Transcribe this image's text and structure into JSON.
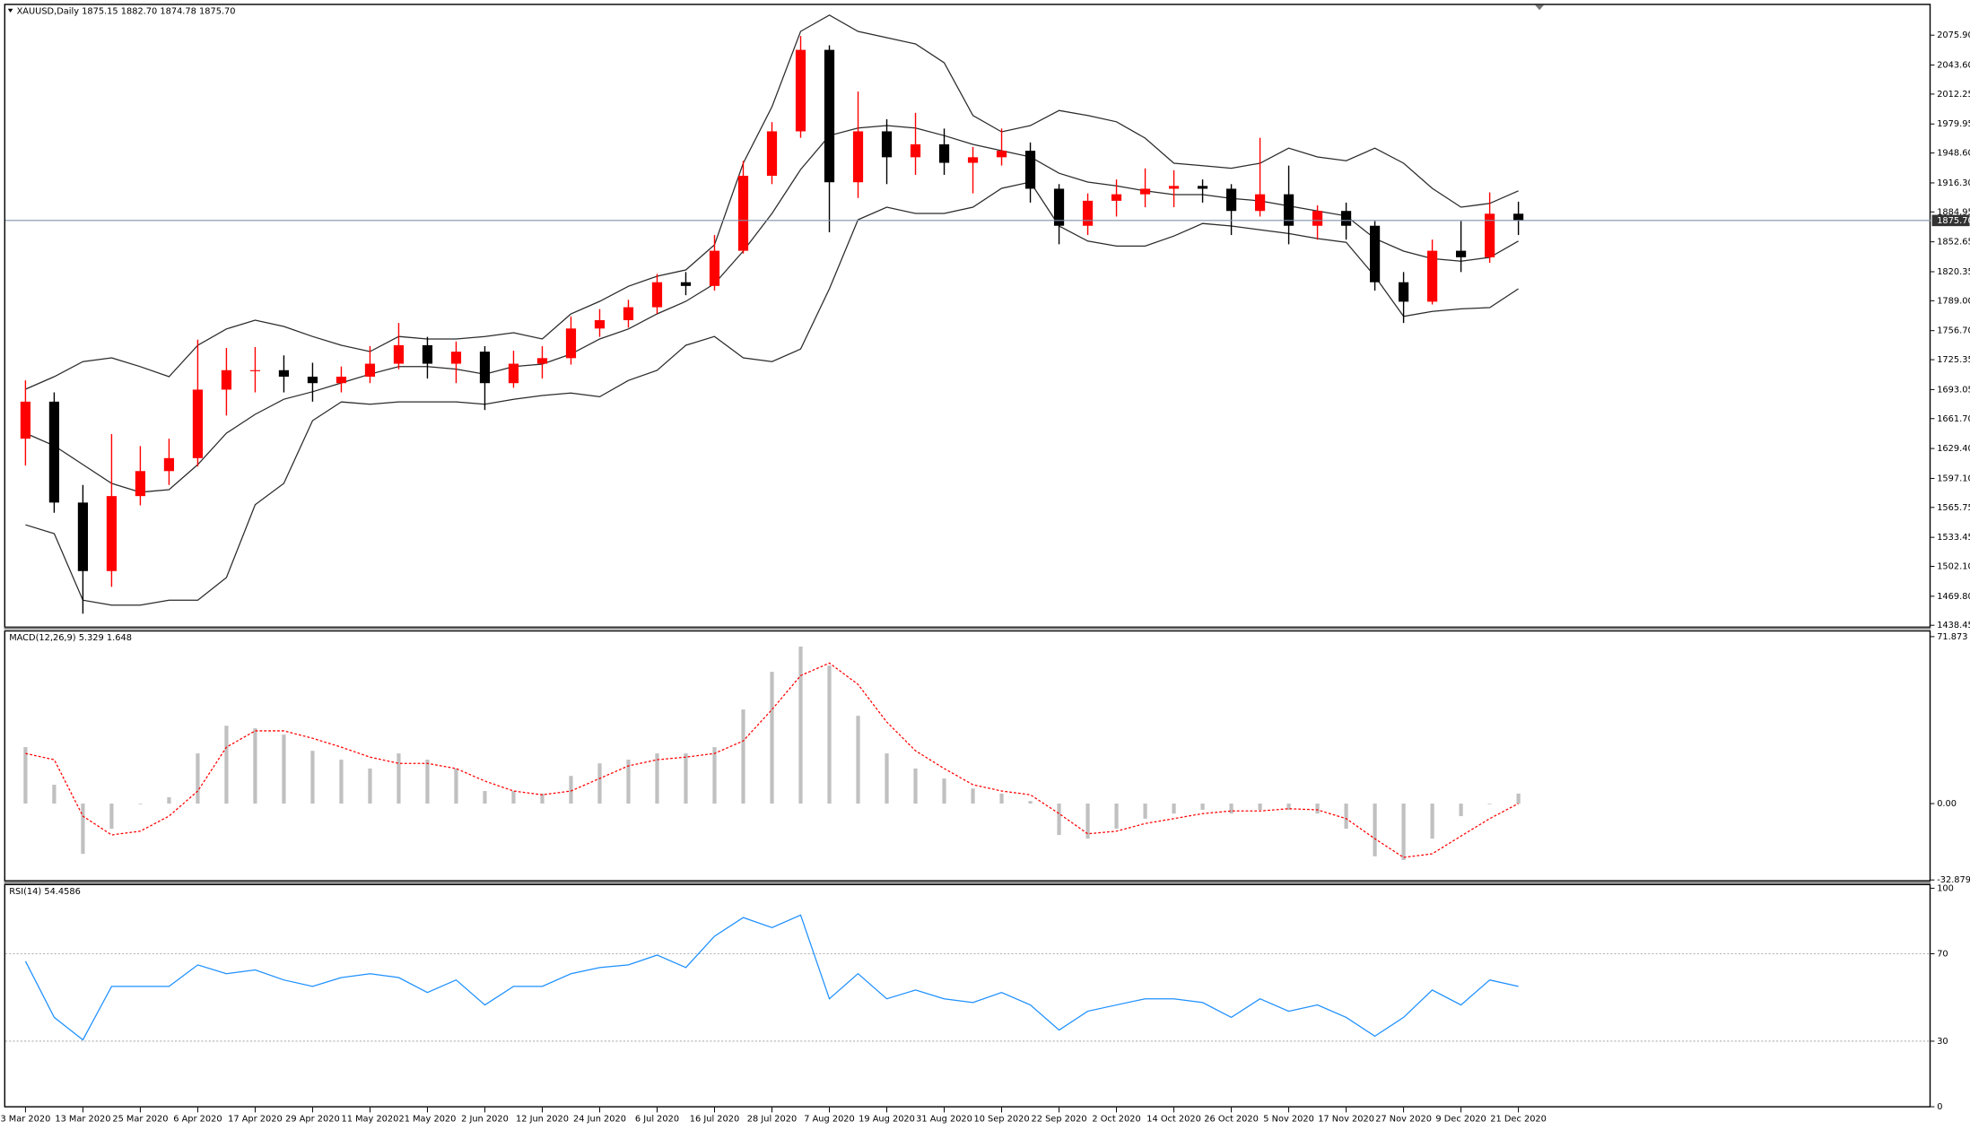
{
  "chart_data": [
    {
      "type": "candlestick",
      "title": "XAUUSD,Daily  1875.15 1882.70 1874.78 1875.70",
      "categories": [
        "3 Mar 2020",
        null,
        "13 Mar 2020",
        null,
        "25 Mar 2020",
        null,
        "6 Apr 2020",
        null,
        "17 Apr 2020",
        null,
        "29 Apr 2020",
        null,
        "11 May 2020",
        null,
        "21 May 2020",
        null,
        "2 Jun 2020",
        null,
        "12 Jun 2020",
        null,
        "24 Jun 2020",
        null,
        "6 Jul 2020",
        null,
        "16 Jul 2020",
        null,
        "28 Jul 2020",
        null,
        "7 Aug 2020",
        null,
        "19 Aug 2020",
        null,
        "31 Aug 2020",
        null,
        "10 Sep 2020",
        null,
        "22 Sep 2020",
        null,
        "2 Oct 2020",
        null,
        "14 Oct 2020",
        null,
        "26 Oct 2020",
        null,
        "5 Nov 2020",
        null,
        "17 Nov 2020",
        null,
        "27 Nov 2020",
        null,
        "9 Dec 2020",
        null,
        "21 Dec 2020"
      ],
      "open": [
        1640,
        1680,
        1571,
        1497,
        1578,
        1605,
        1619,
        1693,
        1714,
        1714,
        1707,
        1700,
        1707,
        1721,
        1741,
        1721,
        1734,
        1700,
        1721,
        1727,
        1759,
        1768,
        1782,
        1809,
        1805,
        1843,
        1924,
        1972,
        2060,
        1917,
        1972,
        1944,
        1958,
        1938,
        1944,
        1951,
        1910,
        1870,
        1897,
        1904,
        1910,
        1913,
        1910,
        1886,
        1904,
        1870,
        1886,
        1870,
        1809,
        1788,
        1843,
        1836,
        1883
      ],
      "high": [
        1703,
        1690,
        1590,
        1645,
        1632,
        1640,
        1747,
        1738,
        1739,
        1730,
        1722,
        1718,
        1740,
        1765,
        1750,
        1745,
        1740,
        1735,
        1740,
        1772,
        1780,
        1790,
        1818,
        1820,
        1860,
        1940,
        1982,
        2075,
        2065,
        2015,
        1985,
        1992,
        1975,
        1955,
        1975,
        1960,
        1915,
        1905,
        1920,
        1932,
        1930,
        1920,
        1915,
        1965,
        1935,
        1892,
        1895,
        1875,
        1820,
        1855,
        1875,
        1906,
        1896
      ],
      "low": [
        1611,
        1560,
        1451,
        1480,
        1568,
        1590,
        1610,
        1665,
        1690,
        1690,
        1680,
        1690,
        1700,
        1715,
        1705,
        1700,
        1671,
        1695,
        1705,
        1720,
        1750,
        1760,
        1775,
        1795,
        1800,
        1840,
        1915,
        1965,
        1863,
        1900,
        1915,
        1925,
        1925,
        1905,
        1935,
        1895,
        1850,
        1860,
        1880,
        1890,
        1890,
        1895,
        1860,
        1880,
        1850,
        1855,
        1855,
        1800,
        1765,
        1785,
        1820,
        1830,
        1860
      ],
      "close": [
        1680,
        1571,
        1497,
        1578,
        1605,
        1619,
        1693,
        1714,
        1714,
        1707,
        1700,
        1707,
        1721,
        1741,
        1721,
        1734,
        1700,
        1721,
        1727,
        1759,
        1768,
        1782,
        1809,
        1805,
        1843,
        1924,
        1972,
        2060,
        1917,
        1972,
        1944,
        1958,
        1938,
        1944,
        1951,
        1910,
        1870,
        1897,
        1904,
        1910,
        1913,
        1910,
        1886,
        1904,
        1870,
        1886,
        1870,
        1809,
        1788,
        1843,
        1836,
        1883,
        1875.7
      ],
      "overlays": {
        "upper": [
          1693.4,
          1707.0,
          1723.3,
          1727.3,
          1717.8,
          1707.0,
          1740.9,
          1758.5,
          1768.0,
          1761.2,
          1750.4,
          1740.9,
          1734.1,
          1750.4,
          1747.7,
          1747.7,
          1750.4,
          1754.5,
          1747.7,
          1774.8,
          1788.4,
          1804.6,
          1815.5,
          1822.3,
          1849.4,
          1937.6,
          1998.6,
          2080.0,
          2097.6,
          2080.0,
          2073.2,
          2066.4,
          2046.1,
          1989.1,
          1971.5,
          1978.2,
          1994.5,
          1989.1,
          1982.3,
          1964.7,
          1937.6,
          1934.8,
          1932.1,
          1937.6,
          1953.8,
          1944.3,
          1940.3,
          1953.8,
          1937.6,
          1910.4,
          1890.1,
          1894.2,
          1907.7
        ],
        "middle": [
          1645.9,
          1632.4,
          1612.0,
          1591.7,
          1582.2,
          1584.9,
          1612.0,
          1645.9,
          1666.3,
          1682.6,
          1690.7,
          1700.2,
          1709.7,
          1717.8,
          1717.8,
          1715.1,
          1709.7,
          1717.8,
          1720.5,
          1731.4,
          1747.7,
          1758.5,
          1774.8,
          1788.4,
          1807.3,
          1842.6,
          1883.3,
          1930.8,
          1967.4,
          1975.5,
          1978.2,
          1975.5,
          1967.4,
          1957.9,
          1951.1,
          1944.3,
          1926.7,
          1917.2,
          1913.1,
          1907.7,
          1903.6,
          1903.6,
          1899.6,
          1896.9,
          1891.4,
          1886.0,
          1880.6,
          1856.2,
          1842.6,
          1834.5,
          1831.8,
          1835.8,
          1853.5
        ],
        "lower": [
          1546.9,
          1537.4,
          1465.6,
          1460.1,
          1460.1,
          1465.6,
          1465.6,
          1490.0,
          1568.6,
          1591.7,
          1659.5,
          1679.8,
          1677.1,
          1679.8,
          1679.8,
          1679.8,
          1677.1,
          1682.6,
          1686.6,
          1689.4,
          1685.3,
          1702.9,
          1713.8,
          1740.9,
          1750.4,
          1727.3,
          1723.3,
          1736.8,
          1801.9,
          1876.5,
          1890.1,
          1883.3,
          1883.3,
          1890.1,
          1910.4,
          1917.2,
          1869.7,
          1853.5,
          1848.0,
          1848.0,
          1858.9,
          1872.4,
          1869.7,
          1865.7,
          1861.6,
          1856.2,
          1852.1,
          1815.5,
          1772.1,
          1777.5,
          1780.2,
          1781.6,
          1801.9
        ]
      },
      "colors": {
        "up": "#ff0000",
        "down": "#000000",
        "bands": "#2b2b2b",
        "last": "#8090a8"
      },
      "last_price": {
        "value": 1875.7,
        "label": "1875.70"
      },
      "ylim": [
        1437.1,
        2109.8
      ],
      "yticks": [
        {
          "value": 2075.9,
          "label": "2075.90"
        },
        {
          "value": 2043.6,
          "label": "2043.60"
        },
        {
          "value": 2012.25,
          "label": "2012.25"
        },
        {
          "value": 1979.95,
          "label": "1979.95"
        },
        {
          "value": 1948.6,
          "label": "1948.60"
        },
        {
          "value": 1916.3,
          "label": "1916.30"
        },
        {
          "value": 1884.95,
          "label": "1884.95"
        },
        {
          "value": 1852.65,
          "label": "1852.65"
        },
        {
          "value": 1820.35,
          "label": "1820.35"
        },
        {
          "value": 1789,
          "label": "1789.00"
        },
        {
          "value": 1756.7,
          "label": "1756.70"
        },
        {
          "value": 1725.35,
          "label": "1725.35"
        },
        {
          "value": 1693.05,
          "label": "1693.05"
        },
        {
          "value": 1661.7,
          "label": "1661.70"
        },
        {
          "value": 1629.4,
          "label": "1629.40"
        },
        {
          "value": 1597.1,
          "label": "1597.10"
        },
        {
          "value": 1565.75,
          "label": "1565.75"
        },
        {
          "value": 1533.45,
          "label": "1533.45"
        },
        {
          "value": 1502.1,
          "label": "1502.10"
        },
        {
          "value": 1469.8,
          "label": "1469.80"
        },
        {
          "value": 1438.45,
          "label": "1438.45"
        }
      ],
      "grid": false
    },
    {
      "type": "bar",
      "title": "MACD(12,26,9) 5.329 1.648",
      "values": [
        24.3,
        8.1,
        -21.6,
        -10.8,
        0,
        2.7,
        21.6,
        33.5,
        32.4,
        29.7,
        22.7,
        18.9,
        15.1,
        21.6,
        18.9,
        15.1,
        5.4,
        5.4,
        4.3,
        11.9,
        17.3,
        18.9,
        21.6,
        21.6,
        24.3,
        40.5,
        56.7,
        67.6,
        59.4,
        37.8,
        21.6,
        15.1,
        10.8,
        6.5,
        4.3,
        1.1,
        -13.5,
        -15.1,
        -10.8,
        -6.5,
        -4.3,
        -2.7,
        -4.3,
        -2.7,
        -2.7,
        -4.3,
        -10.8,
        -22.7,
        -24.3,
        -15.1,
        -5.4,
        0,
        4.3
      ],
      "color": "#c0c0c0",
      "signal": [
        21.6,
        18.9,
        -5.4,
        -13.5,
        -11.9,
        -5.4,
        5.4,
        24.3,
        31.3,
        31.3,
        28.1,
        24.3,
        20.0,
        17.3,
        17.3,
        15.1,
        9.7,
        5.4,
        3.8,
        5.4,
        10.8,
        16.2,
        18.9,
        20.0,
        21.6,
        27.0,
        40.5,
        55.1,
        60.5,
        51.3,
        35.1,
        22.7,
        15.1,
        8.1,
        5.4,
        3.8,
        -4.3,
        -13.0,
        -11.9,
        -8.6,
        -6.5,
        -4.3,
        -3.2,
        -3.2,
        -2.2,
        -2.7,
        -6.5,
        -15.1,
        -23.2,
        -21.6,
        -14.0,
        -6.5,
        0
      ],
      "signal_color": "#ff0000",
      "ylim": [
        -33.5,
        74.6
      ],
      "yticks": [
        71.873,
        {
          "value": 0,
          "label": "0.00"
        },
        -32.879
      ],
      "grid": false
    },
    {
      "type": "line",
      "title": "RSI(14) 54.4586",
      "values": [
        66.6,
        40.9,
        30.6,
        55.1,
        55.1,
        55.1,
        64.9,
        60.9,
        62.6,
        58.0,
        55.1,
        59.1,
        60.9,
        59.1,
        52.3,
        58.0,
        46.6,
        55.1,
        55.1,
        60.9,
        63.7,
        64.9,
        69.4,
        63.7,
        78.0,
        86.6,
        82.0,
        87.7,
        49.4,
        60.9,
        49.4,
        53.4,
        49.4,
        47.7,
        52.3,
        46.6,
        35.1,
        43.7,
        46.6,
        49.4,
        49.4,
        47.7,
        40.9,
        49.4,
        43.7,
        46.6,
        40.9,
        32.3,
        40.9,
        53.4,
        46.6,
        58.0,
        55.1
      ],
      "color": "#1e90ff",
      "levels": [
        70,
        30
      ],
      "ylim": [
        -0.3,
        101.4
      ],
      "yticks": [
        100,
        70,
        30,
        0
      ],
      "grid": false
    }
  ]
}
